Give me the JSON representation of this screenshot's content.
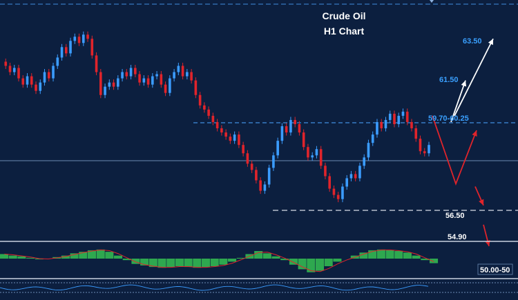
{
  "chart_data": {
    "type": "candlestick",
    "title": "Crude Oil",
    "subtitle": "H1 Chart",
    "levels": [
      {
        "label": "63.50",
        "value": 63.5,
        "style": "target-up"
      },
      {
        "label": "61.50",
        "value": 61.5,
        "style": "target-up"
      },
      {
        "label": "59.70-60.25",
        "value": 59.98,
        "style": "resistance"
      },
      {
        "label": "56.50",
        "value": 56.5,
        "style": "support"
      },
      {
        "label": "54.90",
        "value": 54.9,
        "style": "target-down"
      },
      {
        "label": "50.00-50",
        "value": 50.0,
        "style": "target-down"
      }
    ],
    "ylim": [
      53.9,
      64.9
    ],
    "current_price": 58.2,
    "price_path": [
      62.4,
      62.2,
      61.9,
      62.1,
      61.6,
      61.3,
      61.7,
      61.3,
      61.0,
      61.4,
      61.9,
      61.6,
      62.2,
      62.6,
      63.1,
      62.8,
      63.4,
      63.6,
      63.3,
      63.7,
      63.5,
      62.7,
      61.9,
      60.8,
      61.2,
      61.4,
      61.2,
      61.6,
      61.9,
      61.7,
      62.1,
      61.8,
      61.4,
      61.6,
      61.3,
      61.7,
      61.8,
      61.3,
      60.9,
      61.6,
      61.9,
      62.2,
      61.7,
      61.9,
      61.5,
      60.8,
      60.3,
      60.1,
      59.8,
      59.5,
      59.2,
      59.0,
      58.8,
      58.6,
      58.9,
      58.4,
      58.0,
      57.5,
      57.2,
      56.7,
      56.2,
      56.5,
      57.3,
      57.9,
      58.6,
      59.3,
      59.0,
      59.6,
      59.4,
      59.0,
      58.3,
      57.8,
      57.9,
      58.2,
      57.4,
      56.9,
      56.3,
      56.0,
      55.8,
      56.4,
      56.8,
      57.0,
      56.8,
      57.4,
      57.8,
      58.5,
      58.9,
      59.5,
      59.2,
      59.6,
      59.9,
      59.4,
      59.8,
      60.0,
      59.5,
      59.2,
      58.7,
      58.1,
      58.0,
      58.4
    ],
    "projection": {
      "up_path": [
        59.8,
        56.6,
        59.1
      ],
      "down_path": [
        56.4,
        55.5,
        54.9,
        54.2
      ],
      "white_arrows": [
        [
          59.5,
          61.5
        ],
        [
          59.8,
          63.5
        ]
      ]
    },
    "macd_path": [
      0.3,
      0.2,
      0.15,
      0.05,
      -0.05,
      0.0,
      0.1,
      0.2,
      0.35,
      0.45,
      0.55,
      0.6,
      0.45,
      0.2,
      -0.1,
      -0.35,
      -0.45,
      -0.55,
      -0.6,
      -0.55,
      -0.5,
      -0.55,
      -0.6,
      -0.55,
      -0.5,
      -0.4,
      -0.2,
      0.05,
      0.3,
      0.5,
      0.35,
      0.15,
      -0.1,
      -0.4,
      -0.7,
      -0.9,
      -0.8,
      -0.5,
      -0.2,
      0.0,
      0.2,
      0.4,
      0.55,
      0.6,
      0.55,
      0.5,
      0.4,
      0.2,
      -0.1,
      -0.3
    ],
    "colors": {
      "background": "#0c1f3f",
      "bull_candle": "#3b9cff",
      "bear_candle": "#e0242b",
      "resistance_line": "#3f8fe0",
      "grid_line": "#6c8bb3",
      "macd_bar": "#2ea84f",
      "signal_line": "#e0242b",
      "up_label": "#3aa0ff",
      "white": "#ffffff"
    }
  }
}
